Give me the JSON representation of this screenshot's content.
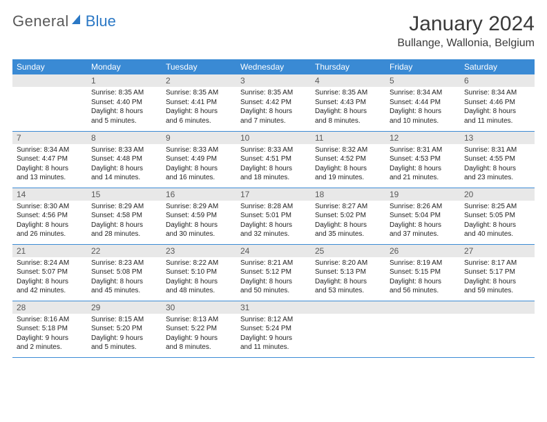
{
  "logo": {
    "word1": "General",
    "word2": "Blue"
  },
  "title": "January 2024",
  "location": "Bullange, Wallonia, Belgium",
  "colors": {
    "header_bg": "#3a8ad4",
    "header_text": "#ffffff",
    "daynum_bg": "#e8e8e8",
    "daynum_text": "#595959",
    "body_text": "#222222",
    "rule": "#3a8ad4",
    "logo_gray": "#595959",
    "logo_blue": "#2b78c5"
  },
  "day_headers": [
    "Sunday",
    "Monday",
    "Tuesday",
    "Wednesday",
    "Thursday",
    "Friday",
    "Saturday"
  ],
  "weeks": [
    [
      null,
      {
        "n": "1",
        "sr": "Sunrise: 8:35 AM",
        "ss": "Sunset: 4:40 PM",
        "d1": "Daylight: 8 hours",
        "d2": "and 5 minutes."
      },
      {
        "n": "2",
        "sr": "Sunrise: 8:35 AM",
        "ss": "Sunset: 4:41 PM",
        "d1": "Daylight: 8 hours",
        "d2": "and 6 minutes."
      },
      {
        "n": "3",
        "sr": "Sunrise: 8:35 AM",
        "ss": "Sunset: 4:42 PM",
        "d1": "Daylight: 8 hours",
        "d2": "and 7 minutes."
      },
      {
        "n": "4",
        "sr": "Sunrise: 8:35 AM",
        "ss": "Sunset: 4:43 PM",
        "d1": "Daylight: 8 hours",
        "d2": "and 8 minutes."
      },
      {
        "n": "5",
        "sr": "Sunrise: 8:34 AM",
        "ss": "Sunset: 4:44 PM",
        "d1": "Daylight: 8 hours",
        "d2": "and 10 minutes."
      },
      {
        "n": "6",
        "sr": "Sunrise: 8:34 AM",
        "ss": "Sunset: 4:46 PM",
        "d1": "Daylight: 8 hours",
        "d2": "and 11 minutes."
      }
    ],
    [
      {
        "n": "7",
        "sr": "Sunrise: 8:34 AM",
        "ss": "Sunset: 4:47 PM",
        "d1": "Daylight: 8 hours",
        "d2": "and 13 minutes."
      },
      {
        "n": "8",
        "sr": "Sunrise: 8:33 AM",
        "ss": "Sunset: 4:48 PM",
        "d1": "Daylight: 8 hours",
        "d2": "and 14 minutes."
      },
      {
        "n": "9",
        "sr": "Sunrise: 8:33 AM",
        "ss": "Sunset: 4:49 PM",
        "d1": "Daylight: 8 hours",
        "d2": "and 16 minutes."
      },
      {
        "n": "10",
        "sr": "Sunrise: 8:33 AM",
        "ss": "Sunset: 4:51 PM",
        "d1": "Daylight: 8 hours",
        "d2": "and 18 minutes."
      },
      {
        "n": "11",
        "sr": "Sunrise: 8:32 AM",
        "ss": "Sunset: 4:52 PM",
        "d1": "Daylight: 8 hours",
        "d2": "and 19 minutes."
      },
      {
        "n": "12",
        "sr": "Sunrise: 8:31 AM",
        "ss": "Sunset: 4:53 PM",
        "d1": "Daylight: 8 hours",
        "d2": "and 21 minutes."
      },
      {
        "n": "13",
        "sr": "Sunrise: 8:31 AM",
        "ss": "Sunset: 4:55 PM",
        "d1": "Daylight: 8 hours",
        "d2": "and 23 minutes."
      }
    ],
    [
      {
        "n": "14",
        "sr": "Sunrise: 8:30 AM",
        "ss": "Sunset: 4:56 PM",
        "d1": "Daylight: 8 hours",
        "d2": "and 26 minutes."
      },
      {
        "n": "15",
        "sr": "Sunrise: 8:29 AM",
        "ss": "Sunset: 4:58 PM",
        "d1": "Daylight: 8 hours",
        "d2": "and 28 minutes."
      },
      {
        "n": "16",
        "sr": "Sunrise: 8:29 AM",
        "ss": "Sunset: 4:59 PM",
        "d1": "Daylight: 8 hours",
        "d2": "and 30 minutes."
      },
      {
        "n": "17",
        "sr": "Sunrise: 8:28 AM",
        "ss": "Sunset: 5:01 PM",
        "d1": "Daylight: 8 hours",
        "d2": "and 32 minutes."
      },
      {
        "n": "18",
        "sr": "Sunrise: 8:27 AM",
        "ss": "Sunset: 5:02 PM",
        "d1": "Daylight: 8 hours",
        "d2": "and 35 minutes."
      },
      {
        "n": "19",
        "sr": "Sunrise: 8:26 AM",
        "ss": "Sunset: 5:04 PM",
        "d1": "Daylight: 8 hours",
        "d2": "and 37 minutes."
      },
      {
        "n": "20",
        "sr": "Sunrise: 8:25 AM",
        "ss": "Sunset: 5:05 PM",
        "d1": "Daylight: 8 hours",
        "d2": "and 40 minutes."
      }
    ],
    [
      {
        "n": "21",
        "sr": "Sunrise: 8:24 AM",
        "ss": "Sunset: 5:07 PM",
        "d1": "Daylight: 8 hours",
        "d2": "and 42 minutes."
      },
      {
        "n": "22",
        "sr": "Sunrise: 8:23 AM",
        "ss": "Sunset: 5:08 PM",
        "d1": "Daylight: 8 hours",
        "d2": "and 45 minutes."
      },
      {
        "n": "23",
        "sr": "Sunrise: 8:22 AM",
        "ss": "Sunset: 5:10 PM",
        "d1": "Daylight: 8 hours",
        "d2": "and 48 minutes."
      },
      {
        "n": "24",
        "sr": "Sunrise: 8:21 AM",
        "ss": "Sunset: 5:12 PM",
        "d1": "Daylight: 8 hours",
        "d2": "and 50 minutes."
      },
      {
        "n": "25",
        "sr": "Sunrise: 8:20 AM",
        "ss": "Sunset: 5:13 PM",
        "d1": "Daylight: 8 hours",
        "d2": "and 53 minutes."
      },
      {
        "n": "26",
        "sr": "Sunrise: 8:19 AM",
        "ss": "Sunset: 5:15 PM",
        "d1": "Daylight: 8 hours",
        "d2": "and 56 minutes."
      },
      {
        "n": "27",
        "sr": "Sunrise: 8:17 AM",
        "ss": "Sunset: 5:17 PM",
        "d1": "Daylight: 8 hours",
        "d2": "and 59 minutes."
      }
    ],
    [
      {
        "n": "28",
        "sr": "Sunrise: 8:16 AM",
        "ss": "Sunset: 5:18 PM",
        "d1": "Daylight: 9 hours",
        "d2": "and 2 minutes."
      },
      {
        "n": "29",
        "sr": "Sunrise: 8:15 AM",
        "ss": "Sunset: 5:20 PM",
        "d1": "Daylight: 9 hours",
        "d2": "and 5 minutes."
      },
      {
        "n": "30",
        "sr": "Sunrise: 8:13 AM",
        "ss": "Sunset: 5:22 PM",
        "d1": "Daylight: 9 hours",
        "d2": "and 8 minutes."
      },
      {
        "n": "31",
        "sr": "Sunrise: 8:12 AM",
        "ss": "Sunset: 5:24 PM",
        "d1": "Daylight: 9 hours",
        "d2": "and 11 minutes."
      },
      null,
      null,
      null
    ]
  ]
}
